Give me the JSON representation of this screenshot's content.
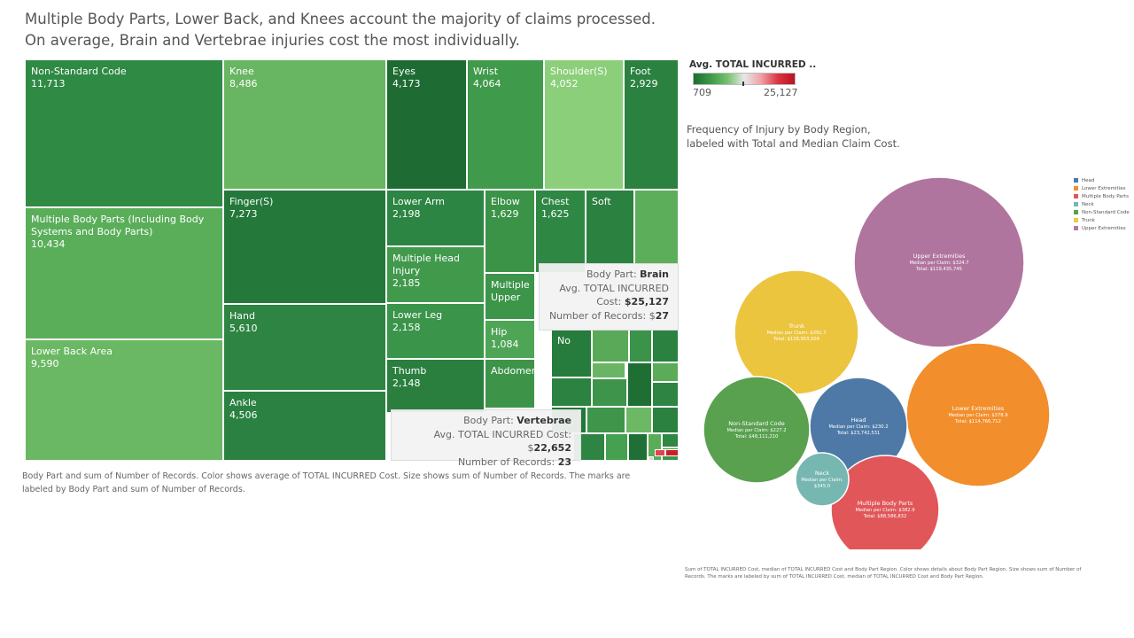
{
  "header": {
    "line1": "Multiple Body Parts, Lower Back, and Knees account the majority of claims processed.",
    "line2": "On average, Brain and Vertebrae injuries cost the most individually."
  },
  "chart_data": [
    {
      "type": "treemap",
      "size_measure": "sum of Number of Records",
      "color_measure": "Avg. TOTAL INCURRED Cost",
      "items": [
        {
          "label": "Non-Standard Code",
          "value": 11713,
          "value_text": "11,713",
          "color": "#2f8a44"
        },
        {
          "label": "Multiple Body Parts (Including Body Systems and Body Parts)",
          "value": 10434,
          "value_text": "10,434",
          "color": "#5aae5a"
        },
        {
          "label": "Lower Back Area",
          "value": 9590,
          "value_text": "9,590",
          "color": "#6ab863"
        },
        {
          "label": "Knee",
          "value": 8486,
          "value_text": "8,486",
          "color": "#68b562"
        },
        {
          "label": "Finger(S)",
          "value": 7273,
          "value_text": "7,273",
          "color": "#23783a"
        },
        {
          "label": "Hand",
          "value": 5610,
          "value_text": "5,610",
          "color": "#2e8442"
        },
        {
          "label": "Ankle",
          "value": 4506,
          "value_text": "4,506",
          "color": "#2b8141"
        },
        {
          "label": "Eyes",
          "value": 4173,
          "value_text": "4,173",
          "color": "#1e6c33"
        },
        {
          "label": "Wrist",
          "value": 4064,
          "value_text": "4,064",
          "color": "#409a4b"
        },
        {
          "label": "Shoulder(S)",
          "value": 4052,
          "value_text": "4,052",
          "color": "#8ccf7a"
        },
        {
          "label": "Foot",
          "value": 2929,
          "value_text": "2,929",
          "color": "#2a8140"
        },
        {
          "label": "Lower Arm",
          "value": 2198,
          "value_text": "2,198",
          "color": "#2d8543"
        },
        {
          "label": "Multiple Head Injury",
          "value": 2185,
          "value_text": "2,185",
          "color": "#41994c"
        },
        {
          "label": "Lower Leg",
          "value": 2158,
          "value_text": "2,158",
          "color": "#3a9449"
        },
        {
          "label": "Thumb",
          "value": 2148,
          "value_text": "2,148",
          "color": "#2a7f3f"
        },
        {
          "label": "Elbow",
          "value": 1629,
          "value_text": "1,629",
          "color": "#3b9348"
        },
        {
          "label": "Chest",
          "value": 1625,
          "value_text": "1,625",
          "color": "#2f8744"
        },
        {
          "label": "Soft",
          "value": null,
          "value_text": "",
          "color": "#2b8140"
        },
        {
          "label": "Multiple Upper",
          "value": null,
          "value_text": "",
          "color": "#3c9549"
        },
        {
          "label": "Hip",
          "value": 1084,
          "value_text": "1,084",
          "color": "#4fa556"
        },
        {
          "label": "Abdomen",
          "value": null,
          "value_text": "",
          "color": "#3d9449"
        },
        {
          "label": "No",
          "value": null,
          "value_text": "",
          "color": "#267c3c"
        }
      ],
      "tooltips": [
        {
          "body_part_label": "Body Part:",
          "body_part": "Brain",
          "avg_label": "Avg. TOTAL INCURRED",
          "cost_label": "Cost:",
          "cost": "$25,127",
          "records_label": "Number of Records:",
          "records_prefix": "$",
          "records": "27"
        },
        {
          "body_part_label": "Body Part:",
          "body_part": "Vertebrae",
          "avg_label": "Avg. TOTAL INCURRED Cost:",
          "cost_prefix": "$",
          "cost": "22,652",
          "records_label": "Number of Records:",
          "records": "23"
        }
      ],
      "legend": {
        "title": "Avg. TOTAL INCURRED ..",
        "min": "709",
        "max": "25,127"
      },
      "footnote": "Body Part and sum of Number of Records.  Color shows average of TOTAL INCURRED Cost.  Size shows sum of Number of Records.  The marks are labeled by Body Part and sum of Number of Records."
    },
    {
      "type": "bubble",
      "subtitle_line1": "Frequency of Injury by Body Region,",
      "subtitle_line2": "labeled with Total and Median Claim Cost.",
      "bubbles": [
        {
          "region": "Upper Extremities",
          "median_text": "Median per Claim: $324.7",
          "total_text": "Total: $119,435,745",
          "total": 119435745,
          "median": 324.7,
          "color": "#b0759e"
        },
        {
          "region": "Trunk",
          "median_text": "Median per Claim: $391.7",
          "total_text": "Total: $118,953,504",
          "total": 118953504,
          "median": 391.7,
          "color": "#ecc53f"
        },
        {
          "region": "Lower Extremities",
          "median_text": "Median per Claim: $378.9",
          "total_text": "Total: $114,766,712",
          "total": 114766712,
          "median": 378.9,
          "color": "#f28e2b"
        },
        {
          "region": "Non-Standard Code",
          "median_text": "Median per Claim: $227.2",
          "total_text": "Total: $48,111,210",
          "total": 48111210,
          "median": 227.2,
          "color": "#59a14f"
        },
        {
          "region": "Head",
          "median_text": "Median per Claim: $230.2",
          "total_text": "Total: $23,742,531",
          "total": 23742531,
          "median": 230.2,
          "color": "#4e79a7"
        },
        {
          "region": "Multiple Body Parts",
          "median_text": "Median per Claim: $382.9",
          "total_text": "Total: $88,586,832",
          "total": 88586832,
          "median": 382.9,
          "color": "#e15759"
        },
        {
          "region": "Neck",
          "median_text": "Median per Claim:",
          "median_text2": "$345.0",
          "total_text": "",
          "median": 345.0,
          "color": "#76b7b2"
        }
      ],
      "legend": [
        {
          "label": "Head",
          "color": "#4e79a7"
        },
        {
          "label": "Lower Extremities",
          "color": "#f28e2b"
        },
        {
          "label": "Multiple Body Parts",
          "color": "#e15759"
        },
        {
          "label": "Neck",
          "color": "#76b7b2"
        },
        {
          "label": "Non-Standard Code",
          "color": "#59a14f"
        },
        {
          "label": "Trunk",
          "color": "#edc948"
        },
        {
          "label": "Upper Extremities",
          "color": "#b07aa1"
        }
      ],
      "footnote": "Sum of TOTAL INCURRED Cost, median of TOTAL INCURRED Cost and Body Part Region.  Color shows details about Body Part Region.  Size shows sum of Number of Records.  The marks are labeled by sum of TOTAL INCURRED Cost, median of TOTAL INCURRED Cost and Body Part Region."
    }
  ]
}
